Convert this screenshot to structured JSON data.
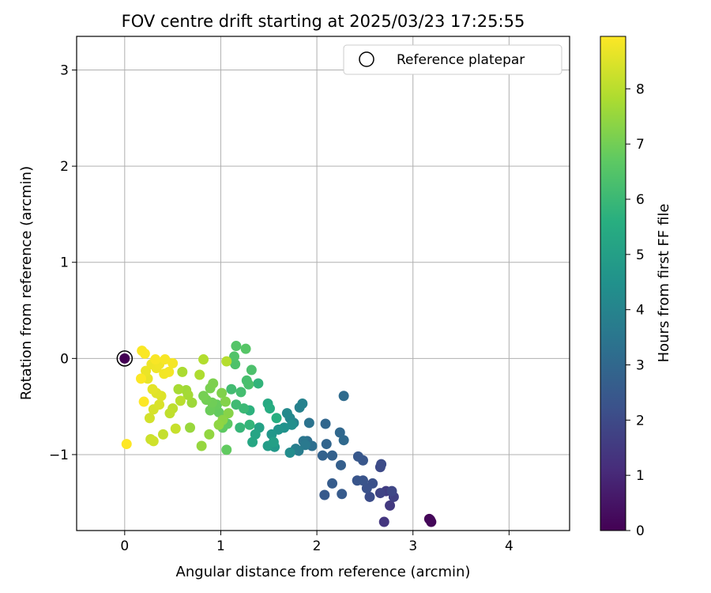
{
  "chart_data": {
    "type": "scatter",
    "title": "FOV centre drift starting at 2025/03/23 17:25:55",
    "xlabel": "Angular distance from reference (arcmin)",
    "ylabel": "Rotation from reference (arcmin)",
    "xlim": [
      -0.5,
      4.63
    ],
    "ylim": [
      -1.79,
      3.35
    ],
    "xticks": [
      0,
      1,
      2,
      3,
      4
    ],
    "yticks": [
      -1,
      0,
      1,
      2,
      3
    ],
    "xtick_labels": [
      "0",
      "1",
      "2",
      "3",
      "4"
    ],
    "ytick_labels": [
      "−1",
      "0",
      "1",
      "2",
      "3"
    ],
    "grid": true,
    "legend": {
      "label": "Reference platepar",
      "placement": "top-right"
    },
    "colorbar": {
      "label": "Hours from first FF file",
      "range": [
        0,
        8.95
      ],
      "ticks": [
        0,
        1,
        2,
        3,
        4,
        5,
        6,
        7,
        8
      ],
      "tick_labels": [
        "0",
        "1",
        "2",
        "3",
        "4",
        "5",
        "6",
        "7",
        "8"
      ],
      "colormap": "viridis"
    },
    "reference_point": {
      "x": 0,
      "y": 0,
      "hours": 0
    },
    "points": [
      {
        "x": 3.17,
        "y": -1.67,
        "h": 0.05
      },
      {
        "x": 3.19,
        "y": -1.7,
        "h": 0.1
      },
      {
        "x": 3.18,
        "y": -1.68,
        "h": 0.15
      },
      {
        "x": 2.7,
        "y": -1.7,
        "h": 1.4
      },
      {
        "x": 2.76,
        "y": -1.53,
        "h": 1.5
      },
      {
        "x": 2.72,
        "y": -1.38,
        "h": 1.6
      },
      {
        "x": 2.8,
        "y": -1.44,
        "h": 1.7
      },
      {
        "x": 2.66,
        "y": -1.4,
        "h": 1.8
      },
      {
        "x": 2.78,
        "y": -1.38,
        "h": 1.9
      },
      {
        "x": 2.66,
        "y": -1.13,
        "h": 2.0
      },
      {
        "x": 2.67,
        "y": -1.1,
        "h": 2.05
      },
      {
        "x": 2.55,
        "y": -1.44,
        "h": 2.1
      },
      {
        "x": 2.58,
        "y": -1.3,
        "h": 2.2
      },
      {
        "x": 2.52,
        "y": -1.35,
        "h": 2.25
      },
      {
        "x": 2.48,
        "y": -1.27,
        "h": 2.3
      },
      {
        "x": 2.42,
        "y": -1.27,
        "h": 2.35
      },
      {
        "x": 2.48,
        "y": -1.06,
        "h": 2.4
      },
      {
        "x": 2.43,
        "y": -1.02,
        "h": 2.45
      },
      {
        "x": 2.08,
        "y": -1.42,
        "h": 2.5
      },
      {
        "x": 2.26,
        "y": -1.41,
        "h": 2.55
      },
      {
        "x": 2.16,
        "y": -1.3,
        "h": 2.6
      },
      {
        "x": 2.25,
        "y": -1.11,
        "h": 2.7
      },
      {
        "x": 2.16,
        "y": -1.01,
        "h": 2.75
      },
      {
        "x": 2.06,
        "y": -1.01,
        "h": 2.8
      },
      {
        "x": 2.1,
        "y": -0.89,
        "h": 2.9
      },
      {
        "x": 2.09,
        "y": -0.68,
        "h": 2.95
      },
      {
        "x": 2.24,
        "y": -0.77,
        "h": 3.0
      },
      {
        "x": 2.28,
        "y": -0.85,
        "h": 3.05
      },
      {
        "x": 2.28,
        "y": -0.39,
        "h": 3.1
      },
      {
        "x": 1.95,
        "y": -0.91,
        "h": 3.2
      },
      {
        "x": 1.9,
        "y": -0.86,
        "h": 3.3
      },
      {
        "x": 1.92,
        "y": -0.67,
        "h": 3.4
      },
      {
        "x": 1.86,
        "y": -0.86,
        "h": 3.5
      },
      {
        "x": 1.88,
        "y": -0.9,
        "h": 3.6
      },
      {
        "x": 1.81,
        "y": -0.96,
        "h": 3.7
      },
      {
        "x": 1.78,
        "y": -0.94,
        "h": 3.8
      },
      {
        "x": 1.82,
        "y": -0.51,
        "h": 3.9
      },
      {
        "x": 1.85,
        "y": -0.47,
        "h": 3.95
      },
      {
        "x": 1.76,
        "y": -0.67,
        "h": 4.0
      },
      {
        "x": 1.72,
        "y": -0.62,
        "h": 4.1
      },
      {
        "x": 1.69,
        "y": -0.57,
        "h": 4.2
      },
      {
        "x": 1.72,
        "y": -0.98,
        "h": 4.3
      },
      {
        "x": 1.74,
        "y": -0.69,
        "h": 4.4
      },
      {
        "x": 1.66,
        "y": -0.72,
        "h": 4.5
      },
      {
        "x": 1.6,
        "y": -0.74,
        "h": 4.6
      },
      {
        "x": 1.53,
        "y": -0.79,
        "h": 4.7
      },
      {
        "x": 1.56,
        "y": -0.92,
        "h": 4.8
      },
      {
        "x": 1.49,
        "y": -0.91,
        "h": 4.9
      },
      {
        "x": 1.55,
        "y": -0.87,
        "h": 5.0
      },
      {
        "x": 1.4,
        "y": -0.72,
        "h": 5.1
      },
      {
        "x": 1.36,
        "y": -0.79,
        "h": 5.2
      },
      {
        "x": 1.33,
        "y": -0.87,
        "h": 5.3
      },
      {
        "x": 1.49,
        "y": -0.47,
        "h": 5.4
      },
      {
        "x": 1.51,
        "y": -0.52,
        "h": 5.5
      },
      {
        "x": 1.58,
        "y": -0.62,
        "h": 5.6
      },
      {
        "x": 1.3,
        "y": -0.54,
        "h": 5.7
      },
      {
        "x": 1.39,
        "y": -0.26,
        "h": 5.8
      },
      {
        "x": 1.3,
        "y": -0.69,
        "h": 5.85
      },
      {
        "x": 1.2,
        "y": -0.72,
        "h": 5.9
      },
      {
        "x": 1.24,
        "y": -0.52,
        "h": 6.0
      },
      {
        "x": 1.16,
        "y": -0.48,
        "h": 6.1
      },
      {
        "x": 1.11,
        "y": -0.32,
        "h": 6.15
      },
      {
        "x": 1.21,
        "y": -0.35,
        "h": 6.2
      },
      {
        "x": 1.27,
        "y": -0.23,
        "h": 6.25
      },
      {
        "x": 1.29,
        "y": -0.27,
        "h": 6.3
      },
      {
        "x": 1.32,
        "y": -0.12,
        "h": 6.35
      },
      {
        "x": 1.15,
        "y": -0.06,
        "h": 6.4
      },
      {
        "x": 1.14,
        "y": 0.02,
        "h": 6.45
      },
      {
        "x": 1.16,
        "y": 0.13,
        "h": 6.5
      },
      {
        "x": 1.26,
        "y": 0.1,
        "h": 6.55
      },
      {
        "x": 1.03,
        "y": -0.6,
        "h": 6.6
      },
      {
        "x": 1.07,
        "y": -0.68,
        "h": 6.65
      },
      {
        "x": 1.02,
        "y": -0.72,
        "h": 6.7
      },
      {
        "x": 1.06,
        "y": -0.95,
        "h": 6.75
      },
      {
        "x": 0.98,
        "y": -0.56,
        "h": 6.8
      },
      {
        "x": 0.96,
        "y": -0.48,
        "h": 6.85
      },
      {
        "x": 0.89,
        "y": -0.54,
        "h": 6.9
      },
      {
        "x": 0.91,
        "y": -0.46,
        "h": 6.95
      },
      {
        "x": 0.85,
        "y": -0.43,
        "h": 7.0
      },
      {
        "x": 0.82,
        "y": -0.39,
        "h": 7.05
      },
      {
        "x": 0.89,
        "y": -0.31,
        "h": 7.1
      },
      {
        "x": 0.92,
        "y": -0.26,
        "h": 7.15
      },
      {
        "x": 1.01,
        "y": -0.36,
        "h": 7.2
      },
      {
        "x": 1.05,
        "y": -0.45,
        "h": 7.25
      },
      {
        "x": 1.08,
        "y": -0.57,
        "h": 7.3
      },
      {
        "x": 1.02,
        "y": -0.64,
        "h": 7.35
      },
      {
        "x": 0.98,
        "y": -0.69,
        "h": 7.4
      },
      {
        "x": 0.88,
        "y": -0.79,
        "h": 7.45
      },
      {
        "x": 0.8,
        "y": -0.91,
        "h": 7.5
      },
      {
        "x": 0.68,
        "y": -0.72,
        "h": 7.55
      },
      {
        "x": 0.7,
        "y": -0.46,
        "h": 7.6
      },
      {
        "x": 0.64,
        "y": -0.33,
        "h": 7.65
      },
      {
        "x": 0.66,
        "y": -0.38,
        "h": 7.7
      },
      {
        "x": 0.56,
        "y": -0.32,
        "h": 7.75
      },
      {
        "x": 0.6,
        "y": -0.14,
        "h": 7.8
      },
      {
        "x": 0.78,
        "y": -0.17,
        "h": 7.85
      },
      {
        "x": 0.82,
        "y": -0.01,
        "h": 7.9
      },
      {
        "x": 1.06,
        "y": -0.03,
        "h": 7.95
      },
      {
        "x": 0.58,
        "y": -0.44,
        "h": 8.0
      },
      {
        "x": 0.5,
        "y": -0.52,
        "h": 8.05
      },
      {
        "x": 0.47,
        "y": -0.57,
        "h": 8.1
      },
      {
        "x": 0.4,
        "y": -0.79,
        "h": 8.15
      },
      {
        "x": 0.53,
        "y": -0.73,
        "h": 8.2
      },
      {
        "x": 0.27,
        "y": -0.84,
        "h": 8.25
      },
      {
        "x": 0.3,
        "y": -0.86,
        "h": 8.3
      },
      {
        "x": 0.26,
        "y": -0.62,
        "h": 8.35
      },
      {
        "x": 0.3,
        "y": -0.53,
        "h": 8.4
      },
      {
        "x": 0.36,
        "y": -0.48,
        "h": 8.45
      },
      {
        "x": 0.38,
        "y": -0.39,
        "h": 8.5
      },
      {
        "x": 0.33,
        "y": -0.36,
        "h": 8.55
      },
      {
        "x": 0.29,
        "y": -0.32,
        "h": 8.6
      },
      {
        "x": 0.24,
        "y": -0.21,
        "h": 8.65
      },
      {
        "x": 0.22,
        "y": -0.13,
        "h": 8.7
      },
      {
        "x": 0.28,
        "y": -0.06,
        "h": 8.72
      },
      {
        "x": 0.33,
        "y": -0.1,
        "h": 8.75
      },
      {
        "x": 0.36,
        "y": -0.06,
        "h": 8.78
      },
      {
        "x": 0.41,
        "y": -0.16,
        "h": 8.8
      },
      {
        "x": 0.46,
        "y": -0.14,
        "h": 8.82
      },
      {
        "x": 0.5,
        "y": -0.05,
        "h": 8.84
      },
      {
        "x": 0.42,
        "y": -0.01,
        "h": 8.86
      },
      {
        "x": 0.32,
        "y": -0.01,
        "h": 8.88
      },
      {
        "x": 0.18,
        "y": 0.08,
        "h": 8.9
      },
      {
        "x": 0.21,
        "y": 0.05,
        "h": 8.91
      },
      {
        "x": 0.17,
        "y": -0.21,
        "h": 8.92
      },
      {
        "x": 0.2,
        "y": -0.45,
        "h": 8.93
      },
      {
        "x": 0.02,
        "y": -0.89,
        "h": 8.95
      }
    ]
  }
}
